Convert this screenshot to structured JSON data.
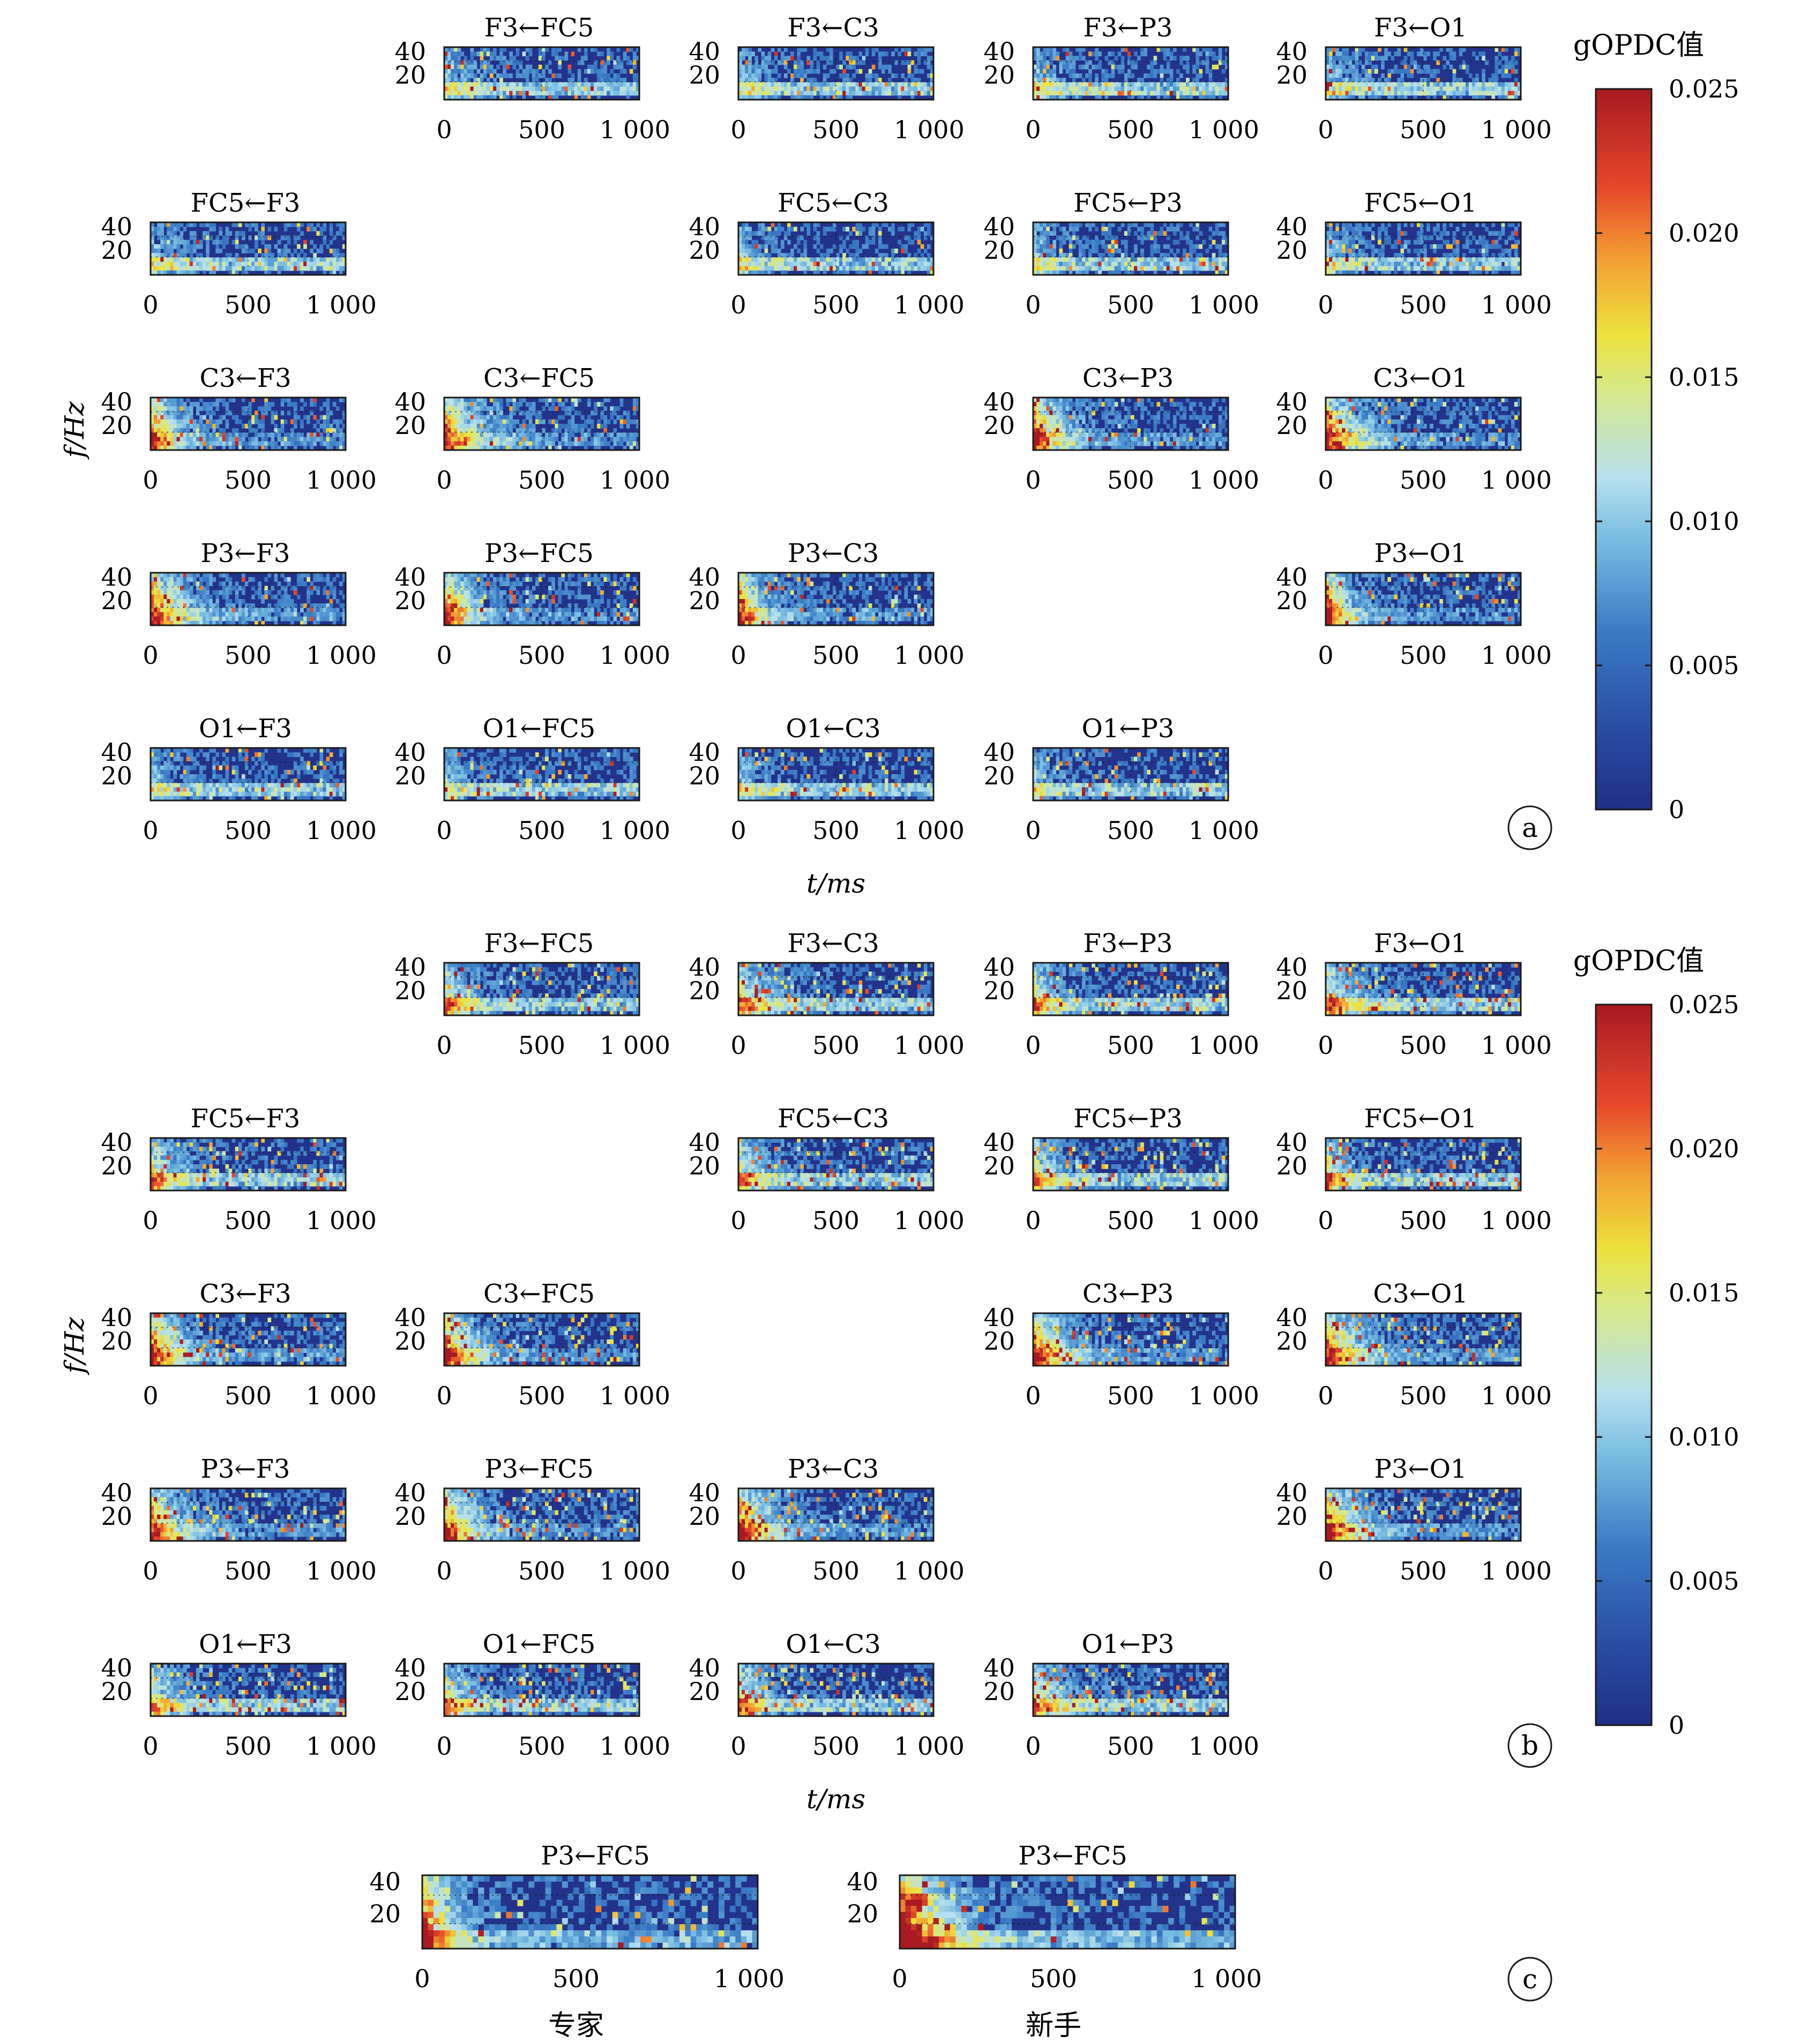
{
  "figure": {
    "panel_labels": [
      "a",
      "b",
      "c"
    ],
    "ylabel": "f/Hz",
    "xlabel": "t/ms",
    "colorbar_title": "gOPDC值",
    "colorbar_ticks": [
      "0",
      "0.005",
      "0.010",
      "0.015",
      "0.020",
      "0.025"
    ],
    "x_ticks": [
      "0",
      "500",
      "1 000"
    ],
    "y_ticks": [
      "40",
      "20"
    ],
    "panel_c_captions": [
      "专家",
      "新手"
    ]
  },
  "colors": {
    "low": "#23338c",
    "mid": "#a9dcee",
    "yellow": "#e8e040",
    "high": "#b81c24"
  },
  "chart_data": [
    {
      "type": "heatmap",
      "panel": "a",
      "x_range_ms": [
        0,
        1000
      ],
      "y_range_hz": [
        0,
        50
      ],
      "color_range": [
        0,
        0.025
      ],
      "matrix": [
        {
          "title": "F3←FC5",
          "row": "F3",
          "col": "FC5"
        },
        {
          "title": "F3←C3",
          "row": "F3",
          "col": "C3"
        },
        {
          "title": "F3←P3",
          "row": "F3",
          "col": "P3"
        },
        {
          "title": "F3←O1",
          "row": "F3",
          "col": "O1"
        },
        {
          "title": "FC5←F3",
          "row": "FC5",
          "col": "F3"
        },
        {
          "title": "FC5←C3",
          "row": "FC5",
          "col": "C3"
        },
        {
          "title": "FC5←P3",
          "row": "FC5",
          "col": "P3"
        },
        {
          "title": "FC5←O1",
          "row": "FC5",
          "col": "O1"
        },
        {
          "title": "C3←F3",
          "row": "C3",
          "col": "F3"
        },
        {
          "title": "C3←FC5",
          "row": "C3",
          "col": "FC5"
        },
        {
          "title": "C3←P3",
          "row": "C3",
          "col": "P3"
        },
        {
          "title": "C3←O1",
          "row": "C3",
          "col": "O1"
        },
        {
          "title": "P3←F3",
          "row": "P3",
          "col": "F3"
        },
        {
          "title": "P3←FC5",
          "row": "P3",
          "col": "FC5"
        },
        {
          "title": "P3←C3",
          "row": "P3",
          "col": "C3"
        },
        {
          "title": "P3←O1",
          "row": "P3",
          "col": "O1"
        },
        {
          "title": "O1←F3",
          "row": "O1",
          "col": "F3"
        },
        {
          "title": "O1←FC5",
          "row": "O1",
          "col": "FC5"
        },
        {
          "title": "O1←C3",
          "row": "O1",
          "col": "C3"
        },
        {
          "title": "O1←P3",
          "row": "O1",
          "col": "P3"
        }
      ]
    },
    {
      "type": "heatmap",
      "panel": "b",
      "x_range_ms": [
        0,
        1000
      ],
      "y_range_hz": [
        0,
        50
      ],
      "color_range": [
        0,
        0.025
      ],
      "matrix": [
        {
          "title": "F3←FC5",
          "row": "F3",
          "col": "FC5"
        },
        {
          "title": "F3←C3",
          "row": "F3",
          "col": "C3"
        },
        {
          "title": "F3←P3",
          "row": "F3",
          "col": "P3"
        },
        {
          "title": "F3←O1",
          "row": "F3",
          "col": "O1"
        },
        {
          "title": "FC5←F3",
          "row": "FC5",
          "col": "F3"
        },
        {
          "title": "FC5←C3",
          "row": "FC5",
          "col": "C3"
        },
        {
          "title": "FC5←P3",
          "row": "FC5",
          "col": "P3"
        },
        {
          "title": "FC5←O1",
          "row": "FC5",
          "col": "O1"
        },
        {
          "title": "C3←F3",
          "row": "C3",
          "col": "F3"
        },
        {
          "title": "C3←FC5",
          "row": "C3",
          "col": "FC5"
        },
        {
          "title": "C3←P3",
          "row": "C3",
          "col": "P3"
        },
        {
          "title": "C3←O1",
          "row": "C3",
          "col": "O1"
        },
        {
          "title": "P3←F3",
          "row": "P3",
          "col": "F3"
        },
        {
          "title": "P3←FC5",
          "row": "P3",
          "col": "FC5"
        },
        {
          "title": "P3←C3",
          "row": "P3",
          "col": "C3"
        },
        {
          "title": "P3←O1",
          "row": "P3",
          "col": "O1"
        },
        {
          "title": "O1←F3",
          "row": "O1",
          "col": "F3"
        },
        {
          "title": "O1←FC5",
          "row": "O1",
          "col": "FC5"
        },
        {
          "title": "O1←C3",
          "row": "O1",
          "col": "C3"
        },
        {
          "title": "O1←P3",
          "row": "O1",
          "col": "P3"
        }
      ]
    },
    {
      "type": "heatmap",
      "panel": "c",
      "x_range_ms": [
        0,
        1000
      ],
      "y_range_hz": [
        0,
        50
      ],
      "color_range": [
        0,
        0.025
      ],
      "maps": [
        {
          "title": "P3←FC5",
          "caption": "专家"
        },
        {
          "title": "P3←FC5",
          "caption": "新手"
        }
      ]
    }
  ]
}
